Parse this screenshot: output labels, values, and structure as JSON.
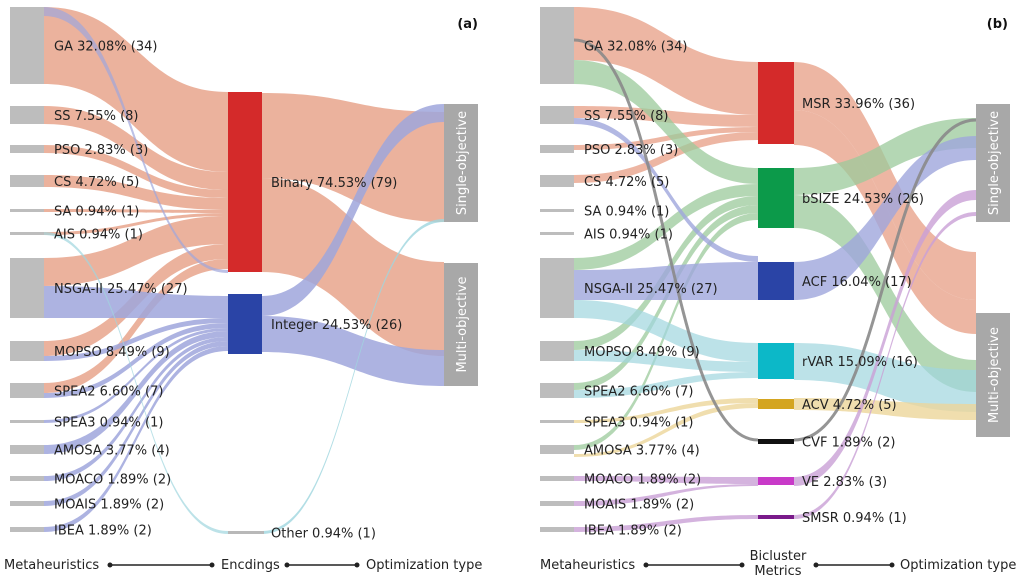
{
  "chart_data": [
    {
      "type": "sankey",
      "panel": "(a)",
      "stage_titles": [
        "Metaheuristics",
        "Encdings",
        "Optimization type"
      ],
      "sources": [
        {
          "name": "GA",
          "label": "GA 32.08% (34)",
          "count": 34
        },
        {
          "name": "SS",
          "label": "SS 7.55% (8)",
          "count": 8
        },
        {
          "name": "PSO",
          "label": "PSO 2.83% (3)",
          "count": 3
        },
        {
          "name": "CS",
          "label": "CS 4.72% (5)",
          "count": 5
        },
        {
          "name": "SA",
          "label": "SA 0.94% (1)",
          "count": 1
        },
        {
          "name": "AIS",
          "label": "AIS 0.94% (1)",
          "count": 1
        },
        {
          "name": "NSGA-II",
          "label": "NSGA-II 25.47% (27)",
          "count": 27
        },
        {
          "name": "MOPSO",
          "label": "MOPSO 8.49% (9)",
          "count": 9
        },
        {
          "name": "SPEA2",
          "label": "SPEA2 6.60% (7)",
          "count": 7
        },
        {
          "name": "SPEA3",
          "label": "SPEA3 0.94% (1)",
          "count": 1
        },
        {
          "name": "AMOSA",
          "label": "AMOSA 3.77% (4)",
          "count": 4
        },
        {
          "name": "MOACO",
          "label": "MOACO 1.89% (2)",
          "count": 2
        },
        {
          "name": "MOAIS",
          "label": "MOAIS 1.89% (2)",
          "count": 2
        },
        {
          "name": "IBEA",
          "label": "IBEA 1.89% (2)",
          "count": 2
        }
      ],
      "middle": [
        {
          "name": "Binary",
          "label": "Binary 74.53% (79)",
          "count": 79,
          "color": "#d42a2a"
        },
        {
          "name": "Integer",
          "label": "Integer 24.53% (26)",
          "count": 26,
          "color": "#2a44a6"
        },
        {
          "name": "Other",
          "label": "Other 0.94% (1)",
          "count": 1,
          "color": "#b8b8b8"
        }
      ],
      "targets": [
        {
          "name": "Single-objective",
          "label": "Single-objective"
        },
        {
          "name": "Multi-objective",
          "label": "Multi-objective"
        }
      ]
    },
    {
      "type": "sankey",
      "panel": "(b)",
      "stage_titles": [
        "Metaheuristics",
        "Bicluster Metrics",
        "Optimization type"
      ],
      "sources": [
        {
          "name": "GA",
          "label": "GA 32.08% (34)",
          "count": 34
        },
        {
          "name": "SS",
          "label": "SS 7.55% (8)",
          "count": 8
        },
        {
          "name": "PSO",
          "label": "PSO 2.83% (3)",
          "count": 3
        },
        {
          "name": "CS",
          "label": "CS 4.72% (5)",
          "count": 5
        },
        {
          "name": "SA",
          "label": "SA 0.94% (1)",
          "count": 1
        },
        {
          "name": "AIS",
          "label": "AIS 0.94% (1)",
          "count": 1
        },
        {
          "name": "NSGA-II",
          "label": "NSGA-II 25.47% (27)",
          "count": 27
        },
        {
          "name": "MOPSO",
          "label": "MOPSO 8.49% (9)",
          "count": 9
        },
        {
          "name": "SPEA2",
          "label": "SPEA2 6.60% (7)",
          "count": 7
        },
        {
          "name": "SPEA3",
          "label": "SPEA3 0.94% (1)",
          "count": 1
        },
        {
          "name": "AMOSA",
          "label": "AMOSA 3.77% (4)",
          "count": 4
        },
        {
          "name": "MOACO",
          "label": "MOACO 1.89% (2)",
          "count": 2
        },
        {
          "name": "MOAIS",
          "label": "MOAIS 1.89% (2)",
          "count": 2
        },
        {
          "name": "IBEA",
          "label": "IBEA 1.89% (2)",
          "count": 2
        }
      ],
      "middle": [
        {
          "name": "MSR",
          "label": "MSR 33.96% (36)",
          "count": 36,
          "color": "#d42a2a"
        },
        {
          "name": "bSIZE",
          "label": "bSIZE 24.53% (26)",
          "count": 26,
          "color": "#0c9a4a"
        },
        {
          "name": "ACF",
          "label": "ACF 16.04% (17)",
          "count": 17,
          "color": "#2a44a6"
        },
        {
          "name": "rVAR",
          "label": "rVAR 15.09% (16)",
          "count": 16,
          "color": "#0cb8c8"
        },
        {
          "name": "ACV",
          "label": "ACV 4.72% (5)",
          "count": 5,
          "color": "#d4a520"
        },
        {
          "name": "CVF",
          "label": "CVF 1.89% (2)",
          "count": 2,
          "color": "#111111"
        },
        {
          "name": "VE",
          "label": "VE 2.83% (3)",
          "count": 3,
          "color": "#c83ac8"
        },
        {
          "name": "SMSR",
          "label": "SMSR 0.94% (1)",
          "count": 1,
          "color": "#7a1a8a"
        }
      ],
      "targets": [
        {
          "name": "Single-objective",
          "label": "Single-objective"
        },
        {
          "name": "Multi-objective",
          "label": "Multi-objective"
        }
      ]
    }
  ],
  "colors": {
    "source_node": "#bdbdbd",
    "target_node": "#a8a8a8",
    "link_salmon": "#e8a48c",
    "link_blue": "#9fa6dc",
    "link_green": "#9bc99b",
    "link_cyan": "#9fd6de",
    "link_gold": "#ecd69a",
    "link_grey": "#8a8a8a",
    "link_purple": "#c9a0d6"
  }
}
